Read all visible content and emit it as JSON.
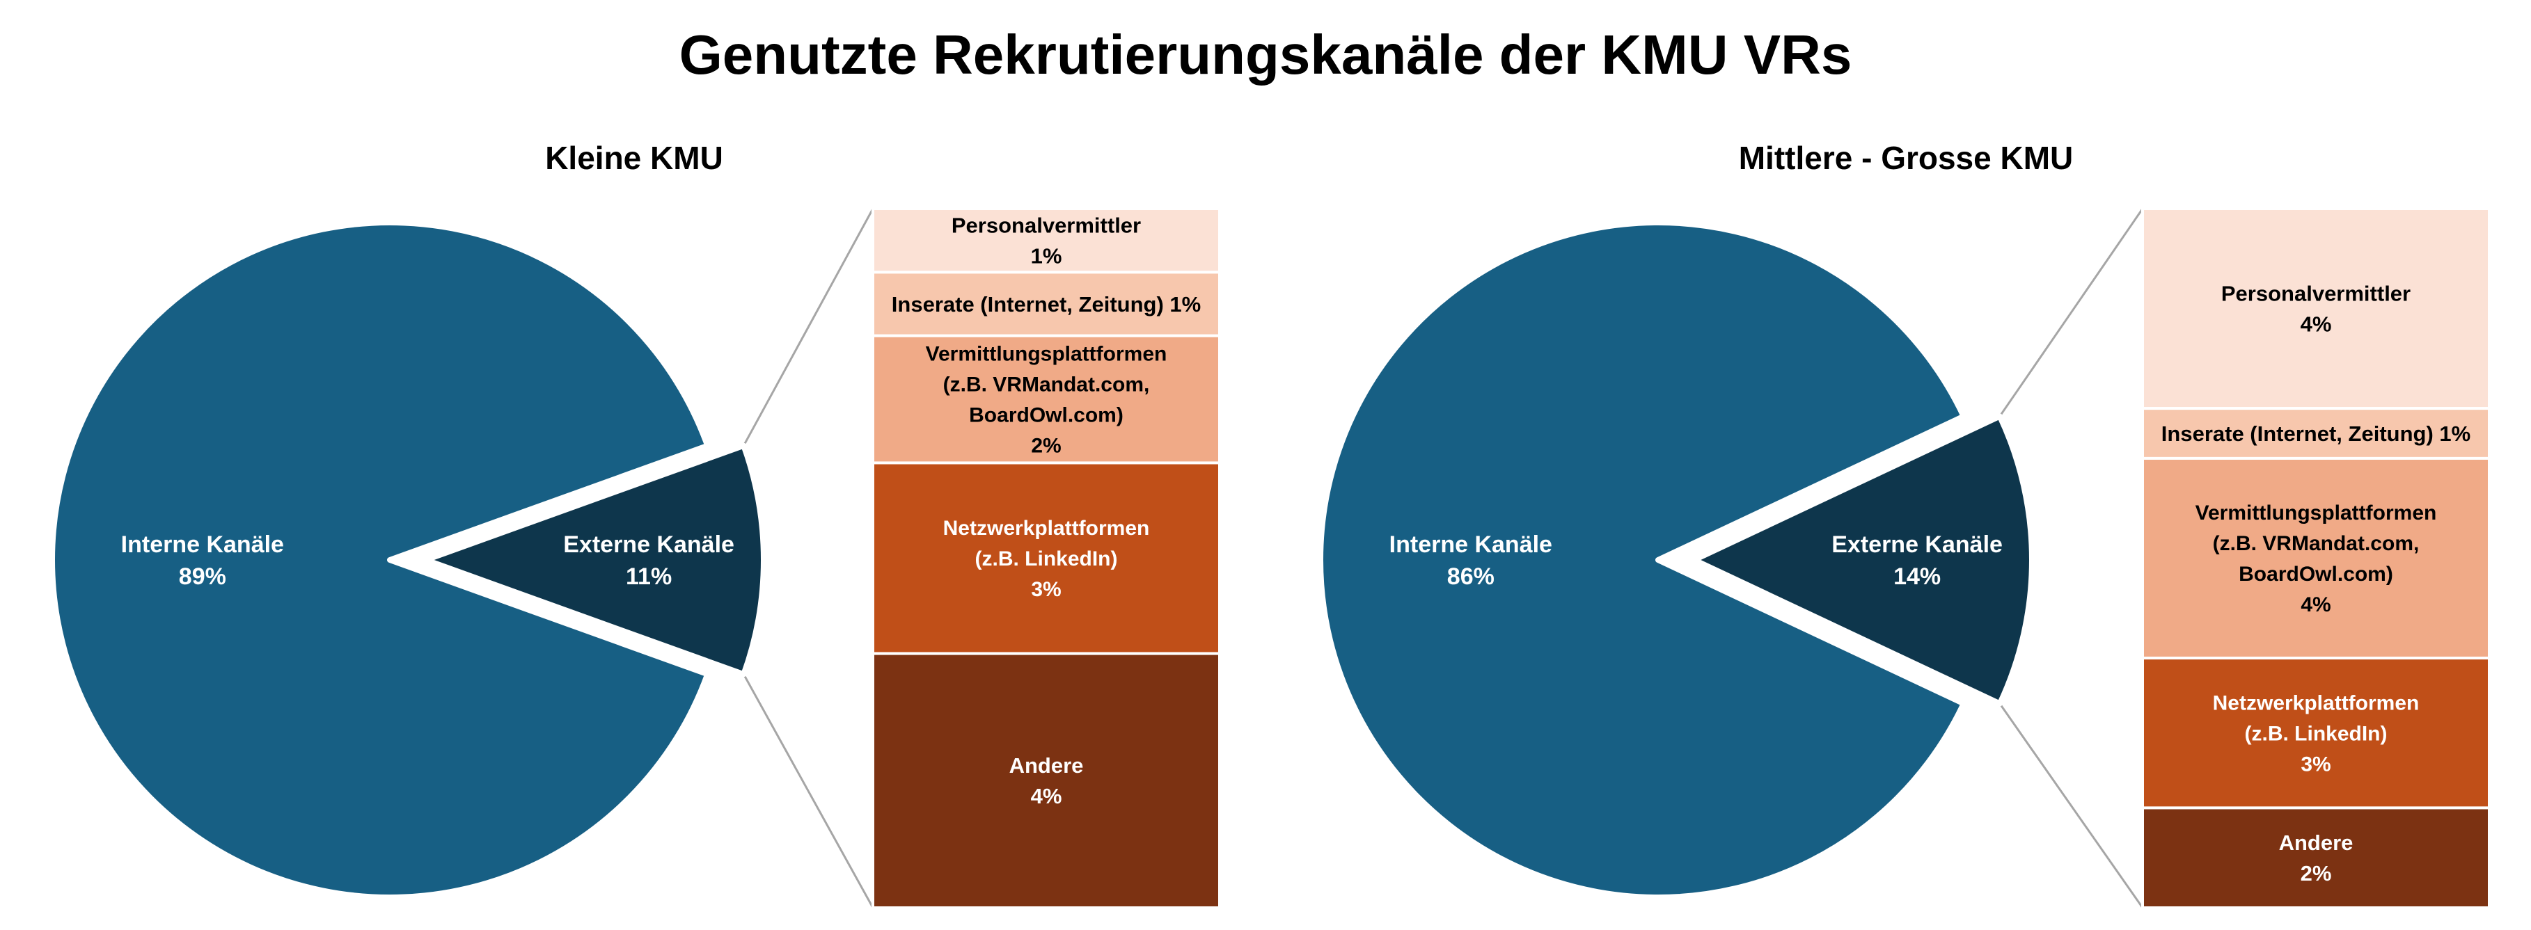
{
  "title": "Genutzte Rekrutierungskanäle der KMU VRs",
  "colors": {
    "interne": "#175f84",
    "externe": "#0e364c",
    "personalvermittler": "#fbe1d5",
    "inserate": "#f7c7ad",
    "vermittlungsplattformen": "#f0aa87",
    "netzwerkplattformen": "#c04f18",
    "andere": "#7c3212",
    "connector": "#a6a6a6"
  },
  "chart_data": [
    {
      "type": "pie",
      "title": "Kleine KMU",
      "slices": [
        {
          "key": "interne",
          "label": "Interne Kanäle",
          "value_label": "89%",
          "value": 89
        },
        {
          "key": "externe",
          "label": "Externe Kanäle",
          "value_label": "11%",
          "value": 11
        }
      ],
      "breakdown": {
        "of": "Externe Kanäle",
        "segments": [
          {
            "key": "personalvermittler",
            "lines": [
              "Personalvermittler",
              "1%"
            ],
            "value": 1
          },
          {
            "key": "inserate",
            "lines": [
              "Inserate (Internet, Zeitung) 1%"
            ],
            "value": 1
          },
          {
            "key": "vermittlungsplattformen",
            "lines": [
              "Vermittlungsplattformen",
              "(z.B. VRMandat.com,",
              "BoardOwl.com)",
              "2%"
            ],
            "value": 2
          },
          {
            "key": "netzwerkplattformen",
            "lines": [
              "Netzwerkplattformen",
              "(z.B. LinkedIn)",
              "3%"
            ],
            "value": 3
          },
          {
            "key": "andere",
            "lines": [
              "Andere",
              "4%"
            ],
            "value": 4
          }
        ]
      }
    },
    {
      "type": "pie",
      "title": "Mittlere - Grosse KMU",
      "slices": [
        {
          "key": "interne",
          "label": "Interne Kanäle",
          "value_label": "86%",
          "value": 86
        },
        {
          "key": "externe",
          "label": "Externe Kanäle",
          "value_label": "14%",
          "value": 14
        }
      ],
      "breakdown": {
        "of": "Externe Kanäle",
        "segments": [
          {
            "key": "personalvermittler",
            "lines": [
              "Personalvermittler",
              "4%"
            ],
            "value": 4
          },
          {
            "key": "inserate",
            "lines": [
              "Inserate (Internet, Zeitung) 1%"
            ],
            "value": 1
          },
          {
            "key": "vermittlungsplattformen",
            "lines": [
              "Vermittlungsplattformen",
              "(z.B. VRMandat.com,",
              "BoardOwl.com)",
              "4%"
            ],
            "value": 4
          },
          {
            "key": "netzwerkplattformen",
            "lines": [
              "Netzwerkplattformen",
              "(z.B. LinkedIn)",
              "3%"
            ],
            "value": 3
          },
          {
            "key": "andere",
            "lines": [
              "Andere",
              "2%"
            ],
            "value": 2
          }
        ]
      }
    }
  ]
}
